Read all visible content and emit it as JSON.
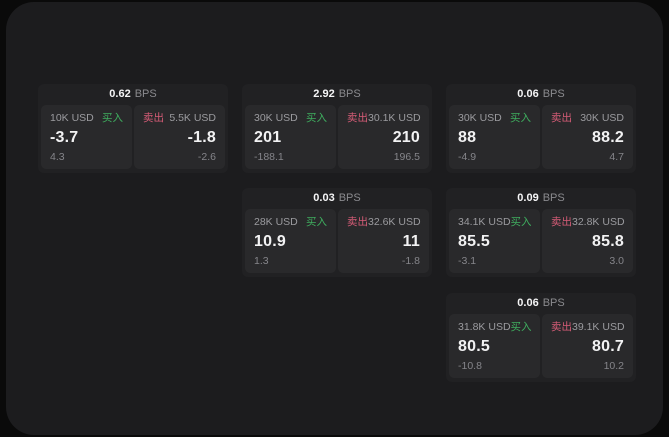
{
  "colors": {
    "buy_green": "#3fae5f",
    "sell_red": "#d65c77",
    "background": "#1c1c1e",
    "card_bg": "#212123",
    "panel_bg": "#29292b"
  },
  "cards": [
    {
      "bps_value": "0.62",
      "bps_unit": "BPS",
      "buy": {
        "amount": "10K USD",
        "side_label": "买入",
        "price": "-3.7",
        "delta": "4.3"
      },
      "sell": {
        "side_label": "卖出",
        "amount": "5.5K USD",
        "price": "-1.8",
        "delta": "-2.6"
      }
    },
    {
      "bps_value": "2.92",
      "bps_unit": "BPS",
      "buy": {
        "amount": "30K USD",
        "side_label": "买入",
        "price": "201",
        "delta": "-188.1"
      },
      "sell": {
        "side_label": "卖出",
        "amount": "30.1K USD",
        "price": "210",
        "delta": "196.5"
      }
    },
    {
      "bps_value": "0.06",
      "bps_unit": "BPS",
      "buy": {
        "amount": "30K USD",
        "side_label": "买入",
        "price": "88",
        "delta": "-4.9"
      },
      "sell": {
        "side_label": "卖出",
        "amount": "30K USD",
        "price": "88.2",
        "delta": "4.7"
      }
    },
    {
      "bps_value": "0.03",
      "bps_unit": "BPS",
      "buy": {
        "amount": "28K USD",
        "side_label": "买入",
        "price": "10.9",
        "delta": "1.3"
      },
      "sell": {
        "side_label": "卖出",
        "amount": "32.6K USD",
        "price": "11",
        "delta": "-1.8"
      }
    },
    {
      "bps_value": "0.09",
      "bps_unit": "BPS",
      "buy": {
        "amount": "34.1K USD",
        "side_label": "买入",
        "price": "85.5",
        "delta": "-3.1"
      },
      "sell": {
        "side_label": "卖出",
        "amount": "32.8K USD",
        "price": "85.8",
        "delta": "3.0"
      }
    },
    {
      "bps_value": "0.06",
      "bps_unit": "BPS",
      "buy": {
        "amount": "31.8K USD",
        "side_label": "买入",
        "price": "80.5",
        "delta": "-10.8"
      },
      "sell": {
        "side_label": "卖出",
        "amount": "39.1K USD",
        "price": "80.7",
        "delta": "10.2"
      }
    }
  ]
}
